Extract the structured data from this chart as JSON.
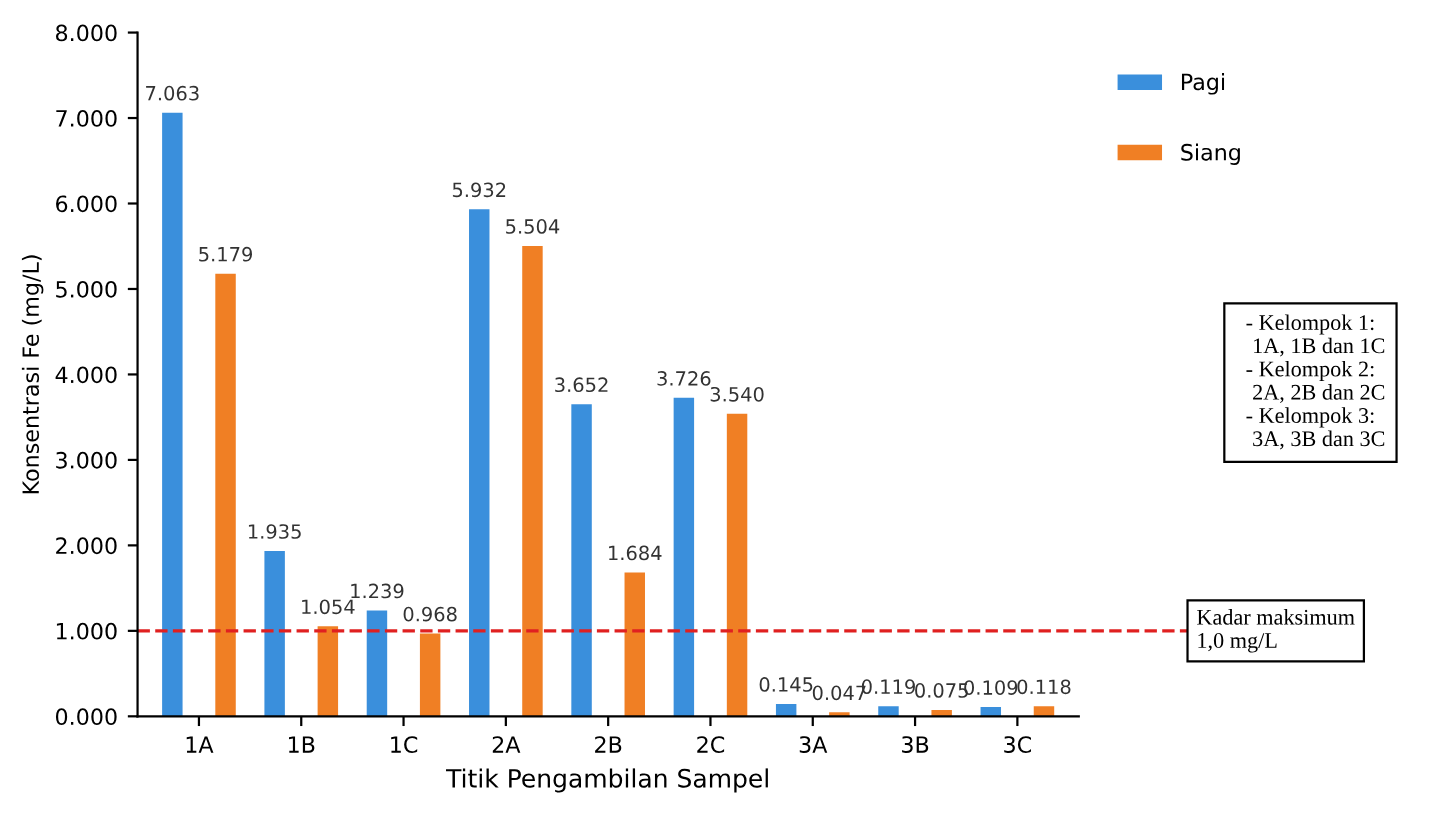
{
  "chart_data": {
    "type": "bar",
    "xlabel": "Titik Pengambilan Sampel",
    "ylabel": "Konsentrasi Fe (mg/L)",
    "categories": [
      "1A",
      "1B",
      "1C",
      "2A",
      "2B",
      "2C",
      "3A",
      "3B",
      "3C"
    ],
    "series": [
      {
        "name": "Pagi",
        "color": "#3a8fdc",
        "values": [
          7.063,
          1.935,
          1.239,
          5.932,
          3.652,
          3.726,
          0.145,
          0.119,
          0.109
        ],
        "value_labels": [
          "7.063",
          "1.935",
          "1.239",
          "5.932",
          "3.652",
          "3.726",
          "0.145",
          "0.119",
          "0.109"
        ]
      },
      {
        "name": "Siang",
        "color": "#f07f24",
        "values": [
          5.179,
          1.054,
          0.968,
          5.504,
          1.684,
          3.54,
          0.047,
          0.075,
          0.118
        ],
        "value_labels": [
          "5.179",
          "1.054",
          "0.968",
          "5.504",
          "1.684",
          "3.540",
          "0.047",
          "0.075",
          "0.118"
        ]
      }
    ],
    "ylim": [
      0,
      8
    ],
    "yticks": [
      {
        "value": 0,
        "label": "0.000"
      },
      {
        "value": 1,
        "label": "1.000"
      },
      {
        "value": 2,
        "label": "2.000"
      },
      {
        "value": 3,
        "label": "3.000"
      },
      {
        "value": 4,
        "label": "4.000"
      },
      {
        "value": 5,
        "label": "5.000"
      },
      {
        "value": 6,
        "label": "6.000"
      },
      {
        "value": 7,
        "label": "7.000"
      },
      {
        "value": 8,
        "label": "8.000"
      }
    ],
    "grid": false,
    "legend": "top right",
    "ref_lines": [
      {
        "axis": "y",
        "value": 1.0,
        "label": "Kadar maksimum\n1,0 mg/L",
        "color": "#e02020",
        "line_style": "dashed"
      }
    ],
    "annotations": [
      "- Kelompok 1:\n   1A, 1B dan 1C\n- Kelompok 2:\n   2A, 2B dan 2C\n- Kelompok 3:\n   3A, 3B dan 3C"
    ]
  }
}
